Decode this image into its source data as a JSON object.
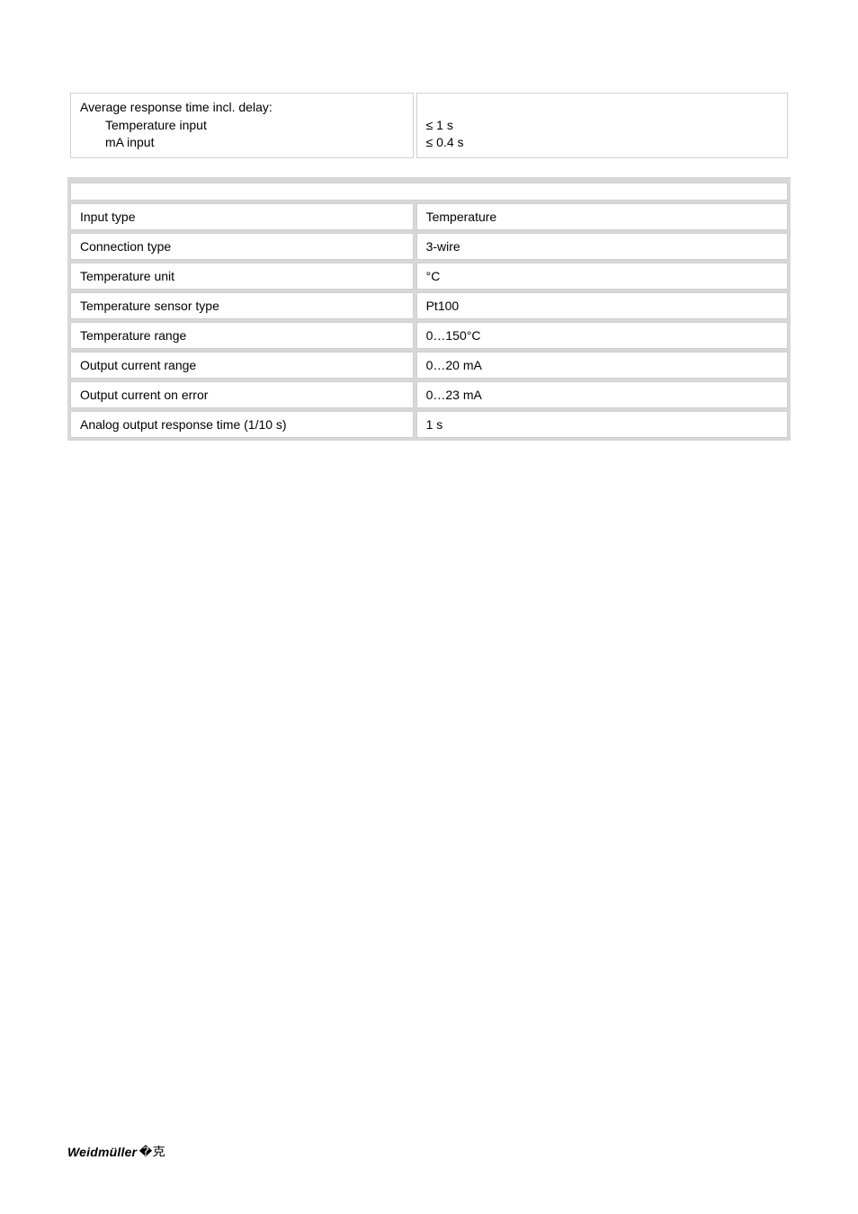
{
  "response_time": {
    "label_line1": "Average response time incl. delay:",
    "label_line2": "Temperature input",
    "label_line3": "mA input",
    "value_line1": "",
    "value_line2": "≤ 1 s",
    "value_line3": "≤ 0.4 s"
  },
  "section_header": "",
  "rows": [
    {
      "label": "Input type",
      "value": "Temperature"
    },
    {
      "label": "Connection type",
      "value": "3-wire"
    },
    {
      "label": "Temperature unit",
      "value": "°C"
    },
    {
      "label": "Temperature sensor type",
      "value": "Pt100"
    },
    {
      "label": "Temperature range",
      "value": "0…150°C"
    },
    {
      "label": "Output current range",
      "value": "0…20 mA"
    },
    {
      "label": "Output current on error",
      "value": "0…23 mA"
    },
    {
      "label": "Analog output response time (1/10 s)",
      "value": "1 s"
    }
  ],
  "footer": {
    "brand": "Weidmüller",
    "glyph": "�克"
  },
  "style": {
    "page_bg": "#ffffff",
    "cell_bg": "#ffffff",
    "cell_border": "#d0d0d0",
    "section_bg": "#d8d8d8",
    "text_color": "#000000",
    "font_size_pt": 10.5
  }
}
